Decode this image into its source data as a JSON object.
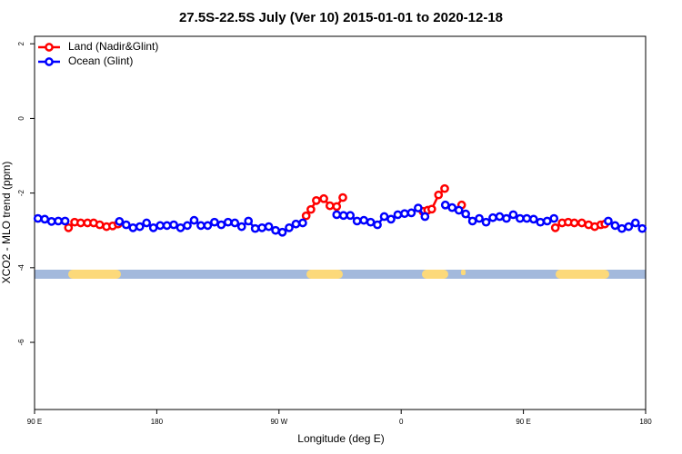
{
  "chart_data": {
    "type": "line",
    "title": "27.5S-22.5S July (Ver 10)   2015-01-01 to 2020-12-18",
    "x_label": "Longitude (deg E)",
    "y_label": "XCO2 - MLO trend (ppm)",
    "xlim": [
      90,
      540
    ],
    "ylim": [
      -7.8,
      2.2
    ],
    "xticks": [
      {
        "value": 90,
        "label": "90 E"
      },
      180,
      {
        "value": 270,
        "label": "90 W"
      },
      {
        "value": 360,
        "label": "0"
      },
      {
        "value": 450,
        "label": "90 E"
      },
      {
        "value": 540,
        "label": "180"
      }
    ],
    "yticks": [
      -6,
      -4,
      -2,
      0,
      2
    ],
    "legend": "top-left",
    "series": [
      {
        "name": "Land (Nadir&Glint)",
        "color": "#ff0000",
        "x": [
          115,
          119.5,
          124,
          129,
          133.5,
          138,
          143,
          147.5,
          151.5,
          220,
          290,
          293.5,
          297.5,
          303,
          307.5,
          312.5,
          317,
          340,
          376,
          379.5,
          382.5,
          387.5,
          392,
          398,
          404.5,
          440,
          473.5,
          478.5,
          483,
          487.5,
          493,
          498,
          502.5,
          507,
          510
        ],
        "values": [
          -2.93,
          -2.78,
          -2.8,
          -2.8,
          -2.8,
          -2.85,
          -2.9,
          -2.88,
          -2.83,
          null,
          -2.61,
          -2.44,
          -2.2,
          -2.15,
          -2.34,
          -2.36,
          -2.12,
          null,
          -2.49,
          -2.46,
          -2.43,
          -2.05,
          -1.88,
          null,
          -2.32,
          null,
          -2.93,
          -2.8,
          -2.78,
          -2.8,
          -2.8,
          -2.85,
          -2.9,
          -2.85,
          -2.83
        ]
      },
      {
        "name": "Ocean (Glint)",
        "color": "#0000ff",
        "x": [
          92.5,
          97.5,
          102.5,
          107.5,
          112.5,
          130,
          152.5,
          157.5,
          162.5,
          167.5,
          172.5,
          177.5,
          182.5,
          187.5,
          192.5,
          197.5,
          202.5,
          207.5,
          212.5,
          217.5,
          222.5,
          227.5,
          232.5,
          237.5,
          242.5,
          247.5,
          252.5,
          257.5,
          262.5,
          267.5,
          272.5,
          277.5,
          282.5,
          287.5,
          300,
          312.5,
          317.5,
          322.5,
          327.5,
          332.5,
          337.5,
          342.5,
          347.5,
          352.5,
          357.5,
          362.5,
          367.5,
          372.5,
          377.5,
          385,
          392.5,
          397.5,
          402.5,
          407.5,
          412.5,
          417.5,
          422.5,
          427.5,
          432.5,
          437.5,
          442.5,
          447.5,
          452.5,
          457.5,
          462.5,
          467.5,
          472.5,
          490,
          512.5,
          517.5,
          522.5,
          527.5,
          532.5,
          537.5
        ],
        "values": [
          -2.68,
          -2.7,
          -2.76,
          -2.75,
          -2.75,
          null,
          -2.76,
          -2.85,
          -2.93,
          -2.9,
          -2.8,
          -2.93,
          -2.87,
          -2.87,
          -2.85,
          -2.93,
          -2.87,
          -2.73,
          -2.87,
          -2.87,
          -2.78,
          -2.85,
          -2.78,
          -2.8,
          -2.9,
          -2.75,
          -2.95,
          -2.93,
          -2.9,
          -3.0,
          -3.05,
          -2.93,
          -2.83,
          -2.8,
          null,
          -2.58,
          -2.6,
          -2.6,
          -2.75,
          -2.73,
          -2.78,
          -2.85,
          -2.63,
          -2.7,
          -2.58,
          -2.55,
          -2.53,
          -2.4,
          -2.63,
          null,
          -2.32,
          -2.39,
          -2.46,
          -2.56,
          -2.75,
          -2.68,
          -2.78,
          -2.66,
          -2.63,
          -2.68,
          -2.58,
          -2.68,
          -2.68,
          -2.7,
          -2.78,
          -2.75,
          -2.68,
          null,
          -2.75,
          -2.87,
          -2.95,
          -2.9,
          -2.8,
          -2.95
        ]
      }
    ]
  }
}
